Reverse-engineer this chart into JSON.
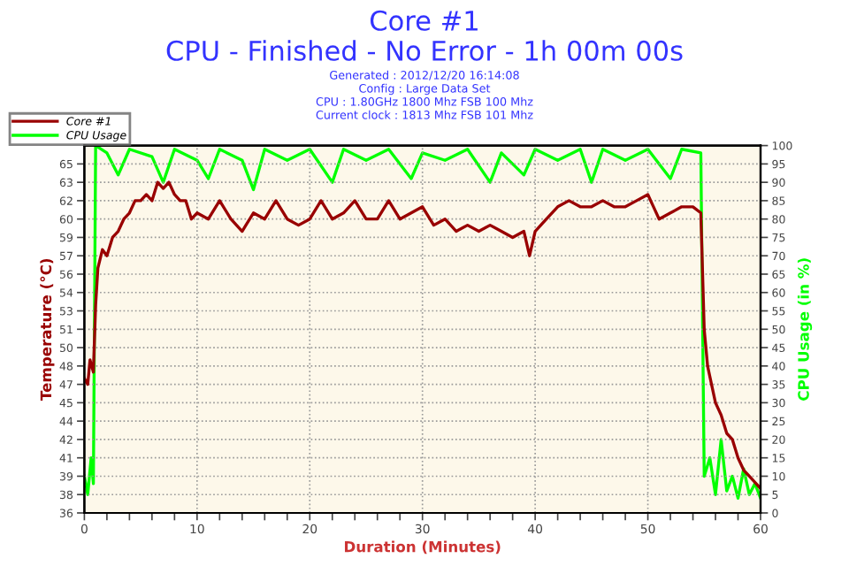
{
  "chart_data": {
    "type": "line",
    "title": "Core #1",
    "subtitle": "CPU - Finished - No Error - 1h 00m 00s",
    "annotations": [
      "Generated : 2012/12/20 16:14:08",
      "Config : Large Data Set",
      "CPU : 1.80GHz 1800 Mhz FSB 100 Mhz",
      "Current clock : 1813 Mhz FSB 101 Mhz"
    ],
    "xlabel": "Duration (Minutes)",
    "ylabel": "Temperature (°C)",
    "y2label": "CPU Usage (in %)",
    "series": [
      {
        "name": "Core #1",
        "color": "#990000",
        "x": [
          0,
          0.3,
          0.5,
          0.8,
          1,
          1.2,
          1.6,
          2,
          2.5,
          3,
          3.5,
          4,
          4.5,
          5,
          5.5,
          6,
          6.5,
          7,
          7.5,
          8,
          8.5,
          9,
          9.5,
          10,
          11,
          12,
          13,
          14,
          15,
          16,
          17,
          18,
          19,
          20,
          21,
          22,
          23,
          24,
          25,
          26,
          27,
          28,
          29,
          30,
          31,
          32,
          33,
          34,
          35,
          36,
          37,
          38,
          39,
          39.5,
          40,
          41,
          42,
          43,
          44,
          45,
          46,
          47,
          48,
          49,
          50,
          50.5,
          51,
          52,
          53,
          54,
          54.7,
          55,
          55.3,
          56,
          56.5,
          57,
          57.5,
          58,
          58.5,
          59,
          59.5,
          60
        ],
        "values": [
          47,
          46.5,
          48.5,
          47.5,
          53,
          56,
          57.5,
          57,
          58.5,
          59,
          60,
          60.5,
          61.5,
          61.5,
          62,
          61.5,
          63,
          62.5,
          63,
          62,
          61.5,
          61.5,
          60,
          60.5,
          60,
          61.5,
          60,
          59,
          60.5,
          60,
          61.5,
          60,
          59.5,
          60,
          61.5,
          60,
          60.5,
          61.5,
          60,
          60,
          61.5,
          60,
          60.5,
          61,
          59.5,
          60,
          59,
          59.5,
          59,
          59.5,
          59,
          58.5,
          59,
          57,
          59,
          60,
          61,
          61.5,
          61,
          61,
          61.5,
          61,
          61,
          61.5,
          62,
          61,
          60,
          60.5,
          61,
          61,
          60.5,
          51,
          48,
          45,
          44,
          42.5,
          42,
          40.5,
          39.5,
          39,
          38.5,
          38
        ]
      },
      {
        "name": "CPU Usage",
        "color": "#00ff00",
        "axis": "y2",
        "x": [
          0,
          0.3,
          0.6,
          0.8,
          1,
          2,
          3,
          4,
          6,
          7,
          8,
          10,
          11,
          12,
          14,
          15,
          16,
          18,
          20,
          22,
          23,
          25,
          27,
          29,
          30,
          32,
          34,
          36,
          37,
          39,
          40,
          42,
          44,
          45,
          46,
          48,
          50,
          52,
          53,
          54.7,
          55,
          55.5,
          56,
          56.5,
          57,
          57.5,
          58,
          58.5,
          59,
          59.5,
          60
        ],
        "values": [
          10,
          5,
          15,
          8,
          100,
          98,
          92,
          99,
          97,
          90,
          99,
          96,
          91,
          99,
          96,
          88,
          99,
          96,
          99,
          90,
          99,
          96,
          99,
          91,
          98,
          96,
          99,
          90,
          98,
          92,
          99,
          96,
          99,
          90,
          99,
          96,
          99,
          91,
          99,
          98,
          10,
          15,
          5,
          20,
          6,
          10,
          4,
          12,
          5,
          8,
          4
        ]
      }
    ],
    "xlim": [
      0,
      60
    ],
    "xticks": [
      0,
      {
        "value": 2,
        "label": null
      },
      {
        "value": 4,
        "label": null
      },
      {
        "value": 6,
        "label": null
      },
      {
        "value": 8,
        "label": null
      },
      10,
      {
        "value": 12,
        "label": null
      },
      {
        "value": 14,
        "label": null
      },
      {
        "value": 16,
        "label": null
      },
      {
        "value": 18,
        "label": null
      },
      20,
      {
        "value": 22,
        "label": null
      },
      {
        "value": 24,
        "label": null
      },
      {
        "value": 26,
        "label": null
      },
      {
        "value": 28,
        "label": null
      },
      30,
      {
        "value": 32,
        "label": null
      },
      {
        "value": 34,
        "label": null
      },
      {
        "value": 36,
        "label": null
      },
      {
        "value": 38,
        "label": null
      },
      40,
      {
        "value": 42,
        "label": null
      },
      {
        "value": 44,
        "label": null
      },
      {
        "value": 46,
        "label": null
      },
      {
        "value": 48,
        "label": null
      },
      50,
      {
        "value": 52,
        "label": null
      },
      {
        "value": 54,
        "label": null
      },
      {
        "value": 56,
        "label": null
      },
      {
        "value": 58,
        "label": null
      },
      60
    ],
    "ylim": [
      36,
      66
    ],
    "yticks": [
      36,
      {
        "value": 37.5,
        "label": "38"
      },
      39,
      {
        "value": 40.5,
        "label": "41"
      },
      42,
      {
        "value": 43.5,
        "label": "44"
      },
      45,
      {
        "value": 46.5,
        "label": "47"
      },
      48,
      {
        "value": 49.5,
        "label": "50"
      },
      51,
      {
        "value": 52.5,
        "label": "53"
      },
      54,
      {
        "value": 55.5,
        "label": "56"
      },
      57,
      {
        "value": 58.5,
        "label": "59"
      },
      60,
      {
        "value": 61.5,
        "label": "62"
      },
      63,
      {
        "value": 64.5,
        "label": "65"
      }
    ],
    "y2lim": [
      0,
      100
    ],
    "y2ticks": [
      0,
      5,
      10,
      15,
      20,
      25,
      30,
      35,
      40,
      45,
      50,
      55,
      60,
      65,
      70,
      75,
      80,
      85,
      90,
      95,
      100
    ],
    "grid": true,
    "legend": "top left",
    "marker": "none",
    "line_style": "solid"
  }
}
